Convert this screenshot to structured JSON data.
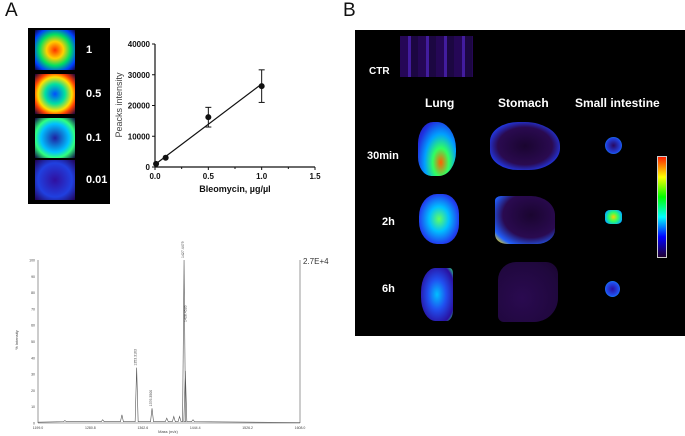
{
  "panels": {
    "a_letter": "A",
    "b_letter": "B"
  },
  "concentrations": [
    "1",
    "0.5",
    "0.1",
    "0.01"
  ],
  "chart_data": [
    {
      "type": "scatter",
      "xlabel": "Bleomycin, µg/µl",
      "ylabel": "Peacks intensity",
      "xlim": [
        0,
        1.5
      ],
      "ylim": [
        0,
        40000
      ],
      "x_ticks": [
        "0.0",
        "0.5",
        "1.0",
        "1.5"
      ],
      "y_ticks": [
        "0",
        "10000",
        "20000",
        "30000",
        "40000"
      ],
      "points": [
        {
          "x": 0.01,
          "y": 1000,
          "err": 0
        },
        {
          "x": 0.1,
          "y": 3000,
          "err": 0
        },
        {
          "x": 0.5,
          "y": 16200,
          "err": 3200
        },
        {
          "x": 1.0,
          "y": 26300,
          "err": 5300
        }
      ],
      "fit_line": {
        "x": [
          0,
          1.0
        ],
        "y": [
          800,
          27000
        ]
      },
      "grid": false
    },
    {
      "type": "line",
      "xlabel": "Mass (m/z)",
      "ylabel": "% Intensity",
      "xlim": [
        1199.0,
        1608.0
      ],
      "ylim": [
        0,
        100
      ],
      "x_ticks": [
        "1199.0",
        "1280.8",
        "1362.6",
        "1444.4",
        "1526.2",
        "1608.0"
      ],
      "y_ticks": [
        "0",
        "10",
        "20",
        "30",
        "40",
        "50",
        "60",
        "70",
        "80",
        "90",
        "100"
      ],
      "max_intensity_label": "2.7E+4",
      "peaks": [
        {
          "x": 1241,
          "y": 1.5
        },
        {
          "x": 1300,
          "y": 2
        },
        {
          "x": 1330,
          "y": 5
        },
        {
          "x": 1353,
          "y": 34,
          "label": "1353.3163"
        },
        {
          "x": 1377,
          "y": 9,
          "label": "1376.3500"
        },
        {
          "x": 1400,
          "y": 3
        },
        {
          "x": 1411,
          "y": 4
        },
        {
          "x": 1420,
          "y": 4
        },
        {
          "x": 1427,
          "y": 100,
          "label": "1427.4479"
        },
        {
          "x": 1429,
          "y": 32
        },
        {
          "x": 1441,
          "y": 2
        }
      ],
      "peak_mid_label": "1428.4526"
    }
  ],
  "imaging": {
    "ctr_label": "CTR",
    "columns": [
      "Lung",
      "Stomach",
      "Small intestine"
    ],
    "rows": [
      "30min",
      "2h",
      "6h"
    ],
    "colorbar": [
      "#ff2000",
      "#ffff00",
      "#00ff00",
      "#00ffff",
      "#0000ff",
      "#200030"
    ]
  }
}
